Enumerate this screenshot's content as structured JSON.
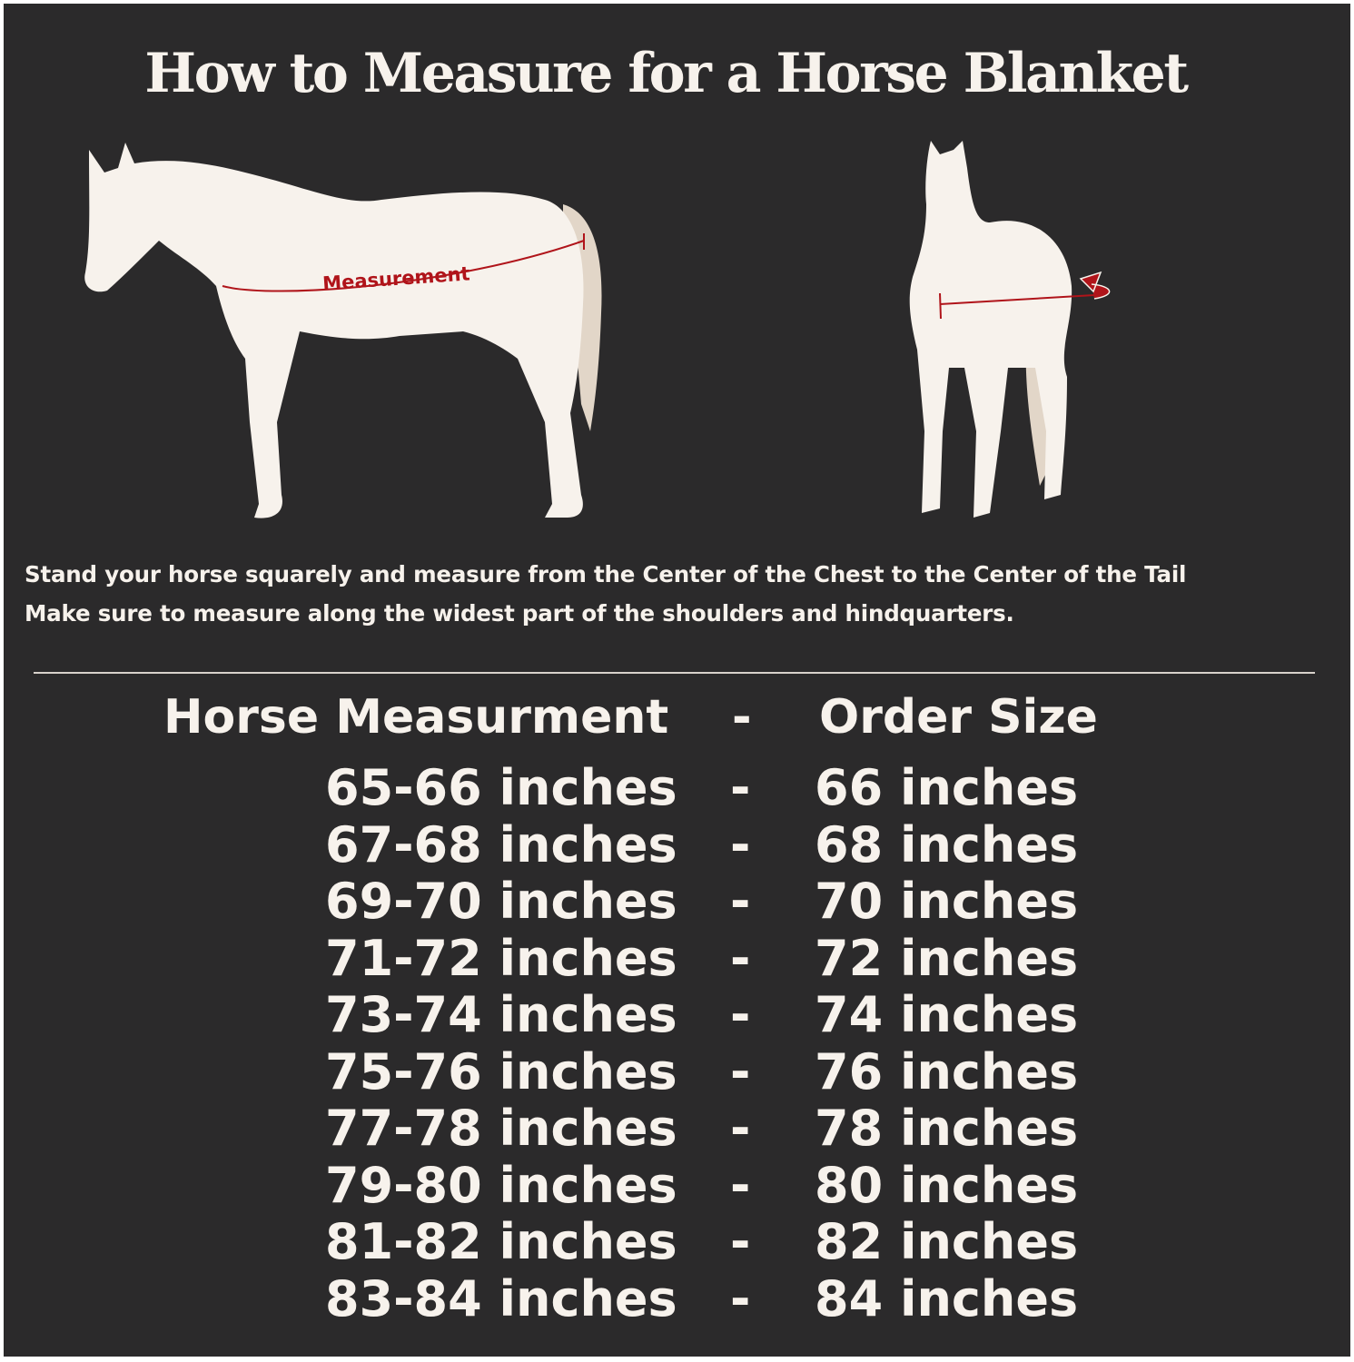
{
  "title": "How to Measure for a Horse Blanket",
  "diagram": {
    "side_label": "Measurement",
    "colors": {
      "background": "#2b2a2b",
      "horse": "#f7f2ec",
      "tail": "#e2d6c8",
      "measure_line": "#b0141a"
    }
  },
  "instructions": [
    "Stand your horse squarely and measure from the Center of the Chest to the Center of the Tail",
    "Make sure to measure along the widest part of the shoulders and hindquarters."
  ],
  "table": {
    "header": {
      "measurement": "Horse Measurment",
      "separator": "-",
      "size": "Order Size"
    },
    "rows": [
      {
        "measurement": "65-66 inches",
        "separator": "-",
        "size": "66 inches"
      },
      {
        "measurement": "67-68 inches",
        "separator": "-",
        "size": "68 inches"
      },
      {
        "measurement": "69-70 inches",
        "separator": "-",
        "size": "70 inches"
      },
      {
        "measurement": "71-72 inches",
        "separator": "-",
        "size": "72 inches"
      },
      {
        "measurement": "73-74 inches",
        "separator": "-",
        "size": "74 inches"
      },
      {
        "measurement": "75-76 inches",
        "separator": "-",
        "size": "76 inches"
      },
      {
        "measurement": "77-78 inches",
        "separator": "-",
        "size": "78 inches"
      },
      {
        "measurement": "79-80 inches",
        "separator": "-",
        "size": "80 inches"
      },
      {
        "measurement": "81-82 inches",
        "separator": "-",
        "size": "82 inches"
      },
      {
        "measurement": "83-84 inches",
        "separator": "-",
        "size": "84 inches"
      }
    ]
  }
}
